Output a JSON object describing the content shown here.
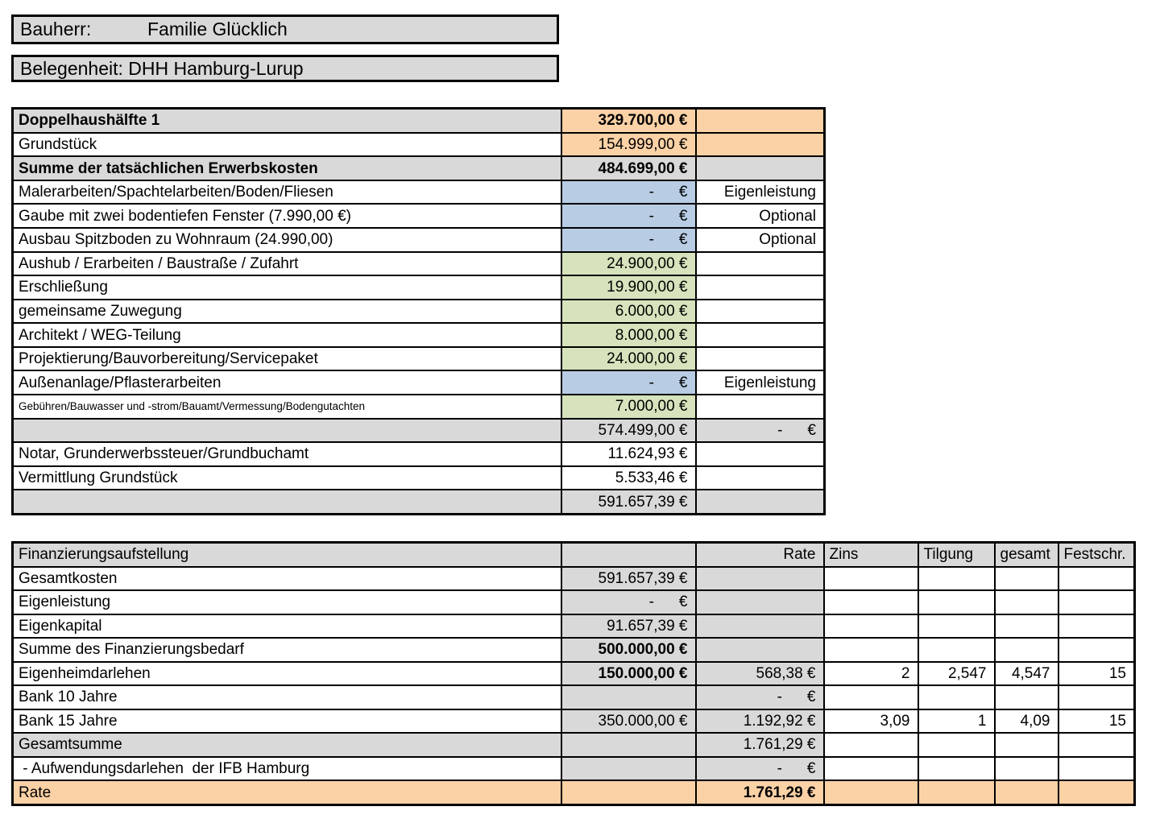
{
  "header": {
    "bauherr_label": "Bauherr:",
    "bauherr_value": "Familie Glücklich",
    "belegenheit": "Belegenheit: DHH Hamburg-Lurup"
  },
  "colors": {
    "gray": "#d9d9d9",
    "orange": "#fbd1a6",
    "blue": "#b8cce4",
    "green": "#d6e3bc",
    "border": "#000000",
    "background": "#ffffff"
  },
  "cost_table": {
    "rows": [
      {
        "cells": [
          {
            "t": "Doppelhaushälfte 1",
            "bg": "gray",
            "b": true,
            "al": "l"
          },
          {
            "t": "329.700,00 €",
            "bg": "orange",
            "b": true,
            "al": "r"
          },
          {
            "t": "",
            "bg": "orange",
            "al": "r"
          }
        ]
      },
      {
        "cells": [
          {
            "t": "Grundstück",
            "al": "l"
          },
          {
            "t": "154.999,00 €",
            "bg": "orange",
            "al": "r"
          },
          {
            "t": "",
            "bg": "orange",
            "al": "r"
          }
        ]
      },
      {
        "cells": [
          {
            "t": "Summe der tatsächlichen Erwerbskosten",
            "bg": "gray",
            "b": true,
            "al": "l"
          },
          {
            "t": "484.699,00 €",
            "bg": "gray",
            "b": true,
            "al": "r"
          },
          {
            "t": "",
            "bg": "gray",
            "al": "r"
          }
        ]
      },
      {
        "cells": [
          {
            "t": "Malerarbeiten/Spachtelarbeiten/Boden/Fliesen",
            "al": "l"
          },
          {
            "t": "-   €",
            "bg": "blue",
            "al": "r",
            "acct": true
          },
          {
            "t": "Eigenleistung",
            "al": "r"
          }
        ]
      },
      {
        "cells": [
          {
            "t": "Gaube mit zwei bodentiefen Fenster (7.990,00 €)",
            "al": "l"
          },
          {
            "t": "-   €",
            "bg": "blue",
            "al": "r",
            "acct": true
          },
          {
            "t": "Optional",
            "al": "r"
          }
        ]
      },
      {
        "cells": [
          {
            "t": "Ausbau Spitzboden zu Wohnraum (24.990,00)",
            "al": "l"
          },
          {
            "t": "-   €",
            "bg": "blue",
            "al": "r",
            "acct": true
          },
          {
            "t": "Optional",
            "al": "r"
          }
        ]
      },
      {
        "cells": [
          {
            "t": "Aushub / Erarbeiten / Baustraße / Zufahrt",
            "al": "l"
          },
          {
            "t": "24.900,00 €",
            "bg": "green",
            "al": "r"
          },
          {
            "t": "",
            "al": "r"
          }
        ]
      },
      {
        "cells": [
          {
            "t": "Erschließung",
            "al": "l"
          },
          {
            "t": "19.900,00 €",
            "bg": "green",
            "al": "r"
          },
          {
            "t": "",
            "al": "r"
          }
        ]
      },
      {
        "cells": [
          {
            "t": "gemeinsame Zuwegung",
            "al": "l"
          },
          {
            "t": "6.000,00 €",
            "bg": "green",
            "al": "r"
          },
          {
            "t": "",
            "al": "r"
          }
        ]
      },
      {
        "cells": [
          {
            "t": "Architekt / WEG-Teilung",
            "al": "l"
          },
          {
            "t": "8.000,00 €",
            "bg": "green",
            "al": "r"
          },
          {
            "t": "",
            "al": "r"
          }
        ]
      },
      {
        "cells": [
          {
            "t": "Projektierung/Bauvorbereitung/Servicepaket",
            "al": "l"
          },
          {
            "t": "24.000,00 €",
            "bg": "green",
            "al": "r"
          },
          {
            "t": "",
            "al": "r"
          }
        ]
      },
      {
        "cells": [
          {
            "t": "Außenanlage/Pflasterarbeiten",
            "al": "l"
          },
          {
            "t": "-   €",
            "bg": "blue",
            "al": "r",
            "acct": true
          },
          {
            "t": "Eigenleistung",
            "al": "r"
          }
        ]
      },
      {
        "cells": [
          {
            "t": "Gebühren/Bauwasser und -strom/Bauamt/Vermessung/Bodengutachten",
            "al": "l",
            "sm": true
          },
          {
            "t": "7.000,00 €",
            "bg": "green",
            "al": "r"
          },
          {
            "t": "",
            "al": "r"
          }
        ]
      },
      {
        "cells": [
          {
            "t": "",
            "bg": "gray",
            "al": "l"
          },
          {
            "t": "574.499,00 €",
            "bg": "gray",
            "al": "r"
          },
          {
            "t": "-   €",
            "bg": "gray",
            "al": "r",
            "acct": true
          }
        ]
      },
      {
        "cells": [
          {
            "t": "Notar, Grunderwerbssteuer/Grundbuchamt",
            "al": "l"
          },
          {
            "t": "11.624,93 €",
            "al": "r"
          },
          {
            "t": "",
            "al": "r"
          }
        ]
      },
      {
        "cells": [
          {
            "t": "Vermittlung Grundstück",
            "al": "l"
          },
          {
            "t": "5.533,46 €",
            "al": "r"
          },
          {
            "t": "",
            "al": "r"
          }
        ]
      },
      {
        "cells": [
          {
            "t": "",
            "bg": "gray",
            "al": "l"
          },
          {
            "t": "591.657,39 €",
            "bg": "gray",
            "al": "r"
          },
          {
            "t": "",
            "bg": "gray",
            "al": "r"
          }
        ]
      }
    ]
  },
  "financing_table": {
    "rows": [
      {
        "header": true,
        "cells": [
          {
            "t": "Finanzierungsaufstellung",
            "bg": "gray",
            "al": "l"
          },
          {
            "t": "",
            "bg": "gray",
            "al": "l"
          },
          {
            "t": "Rate",
            "bg": "gray",
            "al": "r"
          },
          {
            "t": "Zins",
            "bg": "gray",
            "al": "l"
          },
          {
            "t": "Tilgung",
            "bg": "gray",
            "al": "l"
          },
          {
            "t": "gesamt",
            "bg": "gray",
            "al": "l"
          },
          {
            "t": "Festschr.",
            "bg": "gray",
            "al": "l"
          }
        ]
      },
      {
        "cells": [
          {
            "t": "Gesamtkosten",
            "al": "l"
          },
          {
            "t": "591.657,39 €",
            "bg": "gray",
            "al": "r"
          },
          {
            "t": "",
            "bg": "gray",
            "al": "r"
          },
          {
            "t": "",
            "al": "r"
          },
          {
            "t": "",
            "al": "r"
          },
          {
            "t": "",
            "al": "r"
          },
          {
            "t": "",
            "al": "r"
          }
        ]
      },
      {
        "cells": [
          {
            "t": "Eigenleistung",
            "al": "l"
          },
          {
            "t": "-   €",
            "bg": "gray",
            "al": "r",
            "acct": true
          },
          {
            "t": "",
            "bg": "gray",
            "al": "r"
          },
          {
            "t": "",
            "al": "r"
          },
          {
            "t": "",
            "al": "r"
          },
          {
            "t": "",
            "al": "r"
          },
          {
            "t": "",
            "al": "r"
          }
        ]
      },
      {
        "cells": [
          {
            "t": "Eigenkapital",
            "al": "l"
          },
          {
            "t": "91.657,39 €",
            "bg": "gray",
            "al": "r"
          },
          {
            "t": "",
            "bg": "gray",
            "al": "r"
          },
          {
            "t": "",
            "al": "r"
          },
          {
            "t": "",
            "al": "r"
          },
          {
            "t": "",
            "al": "r"
          },
          {
            "t": "",
            "al": "r"
          }
        ]
      },
      {
        "cells": [
          {
            "t": "Summe des Finanzierungsbedarf",
            "al": "l"
          },
          {
            "t": "500.000,00 €",
            "bg": "gray",
            "b": true,
            "al": "r"
          },
          {
            "t": "",
            "bg": "gray",
            "al": "r"
          },
          {
            "t": "",
            "al": "r"
          },
          {
            "t": "",
            "al": "r"
          },
          {
            "t": "",
            "al": "r"
          },
          {
            "t": "",
            "al": "r"
          }
        ]
      },
      {
        "cells": [
          {
            "t": "Eigenheimdarlehen",
            "al": "l"
          },
          {
            "t": "150.000,00 €",
            "bg": "gray",
            "b": true,
            "al": "r"
          },
          {
            "t": "568,38 €",
            "bg": "gray",
            "al": "r"
          },
          {
            "t": "2",
            "al": "r"
          },
          {
            "t": "2,547",
            "al": "r"
          },
          {
            "t": "4,547",
            "al": "r"
          },
          {
            "t": "15",
            "al": "r"
          }
        ]
      },
      {
        "cells": [
          {
            "t": "Bank 10 Jahre",
            "al": "l"
          },
          {
            "t": "",
            "bg": "gray",
            "al": "r"
          },
          {
            "t": "-   €",
            "bg": "gray",
            "al": "r",
            "acct": true
          },
          {
            "t": "",
            "al": "r"
          },
          {
            "t": "",
            "al": "r"
          },
          {
            "t": "",
            "al": "r"
          },
          {
            "t": "",
            "al": "r"
          }
        ]
      },
      {
        "cells": [
          {
            "t": "Bank 15 Jahre",
            "al": "l"
          },
          {
            "t": "350.000,00 €",
            "bg": "gray",
            "al": "r"
          },
          {
            "t": "1.192,92 €",
            "bg": "gray",
            "al": "r"
          },
          {
            "t": "3,09",
            "al": "r"
          },
          {
            "t": "1",
            "al": "r"
          },
          {
            "t": "4,09",
            "al": "r"
          },
          {
            "t": "15",
            "al": "r"
          }
        ]
      },
      {
        "cells": [
          {
            "t": "Gesamtsumme",
            "bg": "gray",
            "al": "l"
          },
          {
            "t": "",
            "bg": "gray",
            "al": "r"
          },
          {
            "t": "1.761,29 €",
            "bg": "gray",
            "al": "r"
          },
          {
            "t": "",
            "al": "r"
          },
          {
            "t": "",
            "al": "r"
          },
          {
            "t": "",
            "al": "r"
          },
          {
            "t": "",
            "al": "r"
          }
        ]
      },
      {
        "cells": [
          {
            "t": " - Aufwendungsdarlehen  der IFB Hamburg",
            "al": "l"
          },
          {
            "t": "",
            "bg": "gray",
            "al": "r"
          },
          {
            "t": "-   €",
            "bg": "gray",
            "al": "r",
            "acct": true
          },
          {
            "t": "",
            "al": "r"
          },
          {
            "t": "",
            "al": "r"
          },
          {
            "t": "",
            "al": "r"
          },
          {
            "t": "",
            "al": "r"
          }
        ]
      },
      {
        "cells": [
          {
            "t": "Rate",
            "bg": "orange",
            "al": "l"
          },
          {
            "t": "",
            "bg": "orange",
            "al": "r"
          },
          {
            "t": "1.761,29 €",
            "bg": "orange",
            "b": true,
            "al": "r"
          },
          {
            "t": "",
            "bg": "orange",
            "al": "r"
          },
          {
            "t": "",
            "bg": "orange",
            "al": "r"
          },
          {
            "t": "",
            "bg": "orange",
            "al": "r"
          },
          {
            "t": "",
            "bg": "orange",
            "al": "r"
          }
        ]
      }
    ]
  }
}
